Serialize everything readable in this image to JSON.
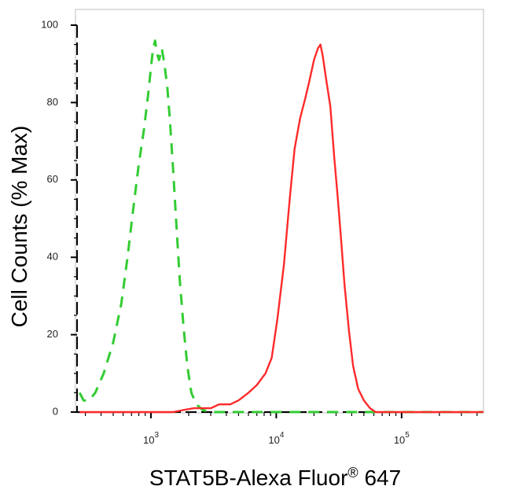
{
  "chart_data": {
    "type": "line",
    "xlabel_main": "STAT5B-Alexa Fluor",
    "xlabel_reg": "®",
    "xlabel_tail": " 647",
    "ylabel": "Cell Counts (% Max)",
    "xscale": "log",
    "xlim": [
      250,
      450000
    ],
    "ylim": [
      0,
      100
    ],
    "x_ticks": [
      {
        "base": "10",
        "exp": "3",
        "value": 1000
      },
      {
        "base": "10",
        "exp": "4",
        "value": 10000
      },
      {
        "base": "10",
        "exp": "5",
        "value": 100000
      }
    ],
    "y_ticks": [
      "0",
      "20",
      "40",
      "60",
      "80",
      "100"
    ],
    "y_tick_values": [
      0,
      20,
      40,
      60,
      80,
      100
    ],
    "grid": false,
    "series": [
      {
        "color": "#33cc33",
        "style": "dashed",
        "points": [
          [
            270,
            5
          ],
          [
            290,
            3
          ],
          [
            320,
            3
          ],
          [
            360,
            5
          ],
          [
            420,
            10
          ],
          [
            500,
            18
          ],
          [
            580,
            28
          ],
          [
            650,
            40
          ],
          [
            720,
            52
          ],
          [
            800,
            64
          ],
          [
            880,
            73
          ],
          [
            950,
            82
          ],
          [
            1000,
            89
          ],
          [
            1040,
            94
          ],
          [
            1080,
            96
          ],
          [
            1110,
            93
          ],
          [
            1160,
            91
          ],
          [
            1220,
            94
          ],
          [
            1280,
            90
          ],
          [
            1350,
            84
          ],
          [
            1420,
            75
          ],
          [
            1500,
            63
          ],
          [
            1600,
            48
          ],
          [
            1700,
            34
          ],
          [
            1820,
            22
          ],
          [
            1950,
            12
          ],
          [
            2100,
            5
          ],
          [
            2300,
            2
          ],
          [
            2600,
            0.5
          ],
          [
            3000,
            0
          ],
          [
            450000,
            0
          ]
        ]
      },
      {
        "color": "#ff2a2a",
        "style": "solid",
        "points": [
          [
            270,
            0
          ],
          [
            1500,
            0
          ],
          [
            1800,
            0.5
          ],
          [
            2200,
            1
          ],
          [
            3000,
            1
          ],
          [
            3500,
            2
          ],
          [
            4300,
            2
          ],
          [
            5000,
            3
          ],
          [
            6000,
            5
          ],
          [
            7000,
            7
          ],
          [
            8200,
            10
          ],
          [
            9200,
            14
          ],
          [
            10200,
            24
          ],
          [
            11500,
            38
          ],
          [
            12800,
            55
          ],
          [
            14000,
            68
          ],
          [
            15500,
            76
          ],
          [
            17000,
            81
          ],
          [
            18500,
            86
          ],
          [
            20000,
            91
          ],
          [
            21500,
            94
          ],
          [
            22500,
            95
          ],
          [
            23500,
            92
          ],
          [
            25000,
            86
          ],
          [
            27000,
            79
          ],
          [
            29000,
            66
          ],
          [
            31000,
            55
          ],
          [
            33000,
            44
          ],
          [
            35000,
            33
          ],
          [
            38000,
            21
          ],
          [
            41000,
            12
          ],
          [
            45000,
            6
          ],
          [
            50000,
            3
          ],
          [
            56000,
            1
          ],
          [
            62000,
            0
          ],
          [
            450000,
            0
          ]
        ]
      }
    ]
  }
}
